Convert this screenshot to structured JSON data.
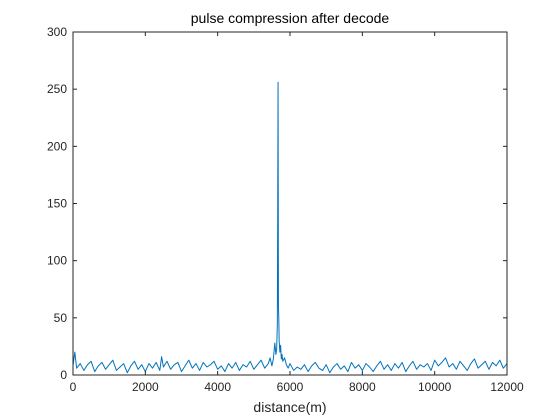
{
  "chart_data": {
    "type": "line",
    "title": "pulse compression after decode",
    "xlabel": "distance(m)",
    "ylabel": "",
    "xlim": [
      0,
      12000
    ],
    "ylim": [
      0,
      300
    ],
    "xticks": [
      0,
      2000,
      4000,
      6000,
      8000,
      10000,
      12000
    ],
    "yticks": [
      0,
      50,
      100,
      150,
      200,
      250,
      300
    ],
    "grid": false,
    "legend": "none",
    "series": [
      {
        "color": "#0072BD",
        "x": [
          0,
          50,
          100,
          200,
          300,
          400,
          500,
          600,
          700,
          800,
          900,
          1000,
          1100,
          1200,
          1300,
          1400,
          1500,
          1600,
          1700,
          1800,
          1900,
          2000,
          2100,
          2200,
          2300,
          2400,
          2450,
          2500,
          2600,
          2700,
          2800,
          2900,
          3000,
          3100,
          3200,
          3300,
          3400,
          3500,
          3600,
          3700,
          3800,
          3900,
          4000,
          4100,
          4200,
          4300,
          4400,
          4500,
          4600,
          4700,
          4800,
          4900,
          5000,
          5100,
          5200,
          5300,
          5400,
          5450,
          5500,
          5540,
          5580,
          5610,
          5630,
          5650,
          5660,
          5670,
          5680,
          5690,
          5700,
          5720,
          5740,
          5760,
          5780,
          5800,
          5850,
          5900,
          5950,
          6000,
          6100,
          6200,
          6300,
          6400,
          6500,
          6600,
          6700,
          6800,
          6900,
          7000,
          7100,
          7200,
          7300,
          7400,
          7500,
          7600,
          7700,
          7800,
          7900,
          8000,
          8100,
          8200,
          8300,
          8400,
          8500,
          8600,
          8700,
          8800,
          8900,
          9000,
          9100,
          9200,
          9300,
          9400,
          9500,
          9600,
          9700,
          9800,
          9900,
          10000,
          10100,
          10200,
          10300,
          10400,
          10500,
          10600,
          10700,
          10800,
          10900,
          11000,
          11100,
          11200,
          11300,
          11400,
          11500,
          11600,
          11700,
          11800,
          11900,
          12000
        ],
        "y": [
          8,
          20,
          6,
          10,
          4,
          9,
          12,
          3,
          8,
          11,
          5,
          9,
          13,
          4,
          7,
          10,
          2,
          8,
          12,
          5,
          9,
          3,
          10,
          6,
          11,
          4,
          16,
          7,
          12,
          5,
          9,
          11,
          3,
          8,
          13,
          6,
          10,
          4,
          11,
          7,
          9,
          12,
          5,
          8,
          3,
          10,
          6,
          11,
          4,
          9,
          7,
          12,
          5,
          9,
          13,
          6,
          10,
          15,
          8,
          14,
          28,
          18,
          22,
          45,
          140,
          256,
          60,
          50,
          30,
          20,
          26,
          14,
          18,
          12,
          15,
          9,
          6,
          10,
          4,
          7,
          5,
          9,
          3,
          8,
          11,
          6,
          4,
          9,
          2,
          7,
          10,
          5,
          8,
          3,
          11,
          6,
          9,
          4,
          10,
          7,
          3,
          8,
          12,
          5,
          9,
          4,
          10,
          6,
          11,
          3,
          8,
          12,
          5,
          9,
          7,
          10,
          4,
          13,
          8,
          11,
          15,
          7,
          10,
          5,
          12,
          8,
          4,
          10,
          14,
          6,
          9,
          12,
          5,
          11,
          8,
          13,
          6,
          10
        ]
      }
    ]
  }
}
